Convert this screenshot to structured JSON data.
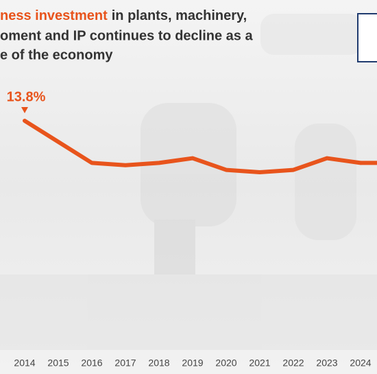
{
  "chart_data": {
    "type": "line",
    "title_highlight": "ness investment",
    "title": [
      "in plants, machinery,",
      "oment and IP continues to decline as a",
      "e of the economy"
    ],
    "categories": [
      "2014",
      "2015",
      "2016",
      "2017",
      "2018",
      "2019",
      "2020",
      "2021",
      "2022",
      "2023",
      "2024"
    ],
    "values": [
      13.8,
      12.9,
      12.0,
      11.9,
      12.0,
      12.2,
      11.7,
      11.6,
      11.7,
      12.2,
      12.0
    ],
    "value_labels": [
      "13.8%",
      null,
      null,
      null,
      null,
      null,
      null,
      null,
      null,
      null,
      null
    ],
    "color": "#e8541c"
  }
}
